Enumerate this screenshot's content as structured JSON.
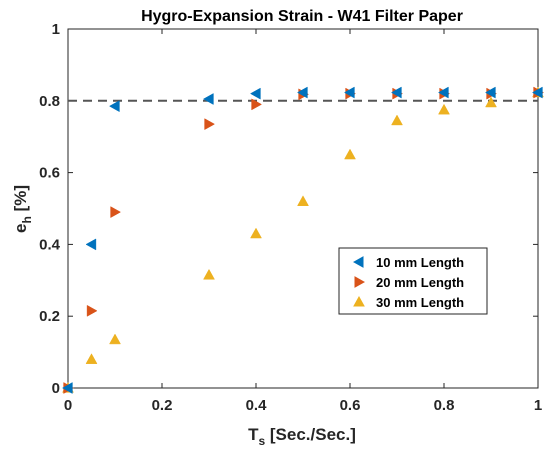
{
  "chart_data": {
    "type": "scatter",
    "title": "Hygro-Expansion Strain - W41 Filter Paper",
    "xlabel": {
      "main": "T",
      "sub": "s",
      "rest": " [Sec./Sec.]"
    },
    "ylabel": {
      "main": "e",
      "sub": "h",
      "rest": " [%]"
    },
    "xlim": [
      0,
      1
    ],
    "ylim": [
      0,
      1
    ],
    "xticks": [
      0,
      0.2,
      0.4,
      0.6,
      0.8,
      1
    ],
    "yticks": [
      0,
      0.2,
      0.4,
      0.6,
      0.8,
      1
    ],
    "xtick_labels": [
      "0",
      "0.2",
      "0.4",
      "0.6",
      "0.8",
      "1"
    ],
    "ytick_labels": [
      "0",
      "0.2",
      "0.4",
      "0.6",
      "0.8",
      "1"
    ],
    "grid": false,
    "reference_line": {
      "y": 0.8,
      "style": "dashed",
      "color": "#555555"
    },
    "legend_position": "center-right",
    "series": [
      {
        "name": "10 mm Length",
        "marker": "triangle-left",
        "color": "#0072BD",
        "x": [
          0,
          0.05,
          0.1,
          0.3,
          0.4,
          0.5,
          0.6,
          0.7,
          0.8,
          0.9,
          1.0
        ],
        "y": [
          0,
          0.4,
          0.785,
          0.805,
          0.82,
          0.823,
          0.823,
          0.823,
          0.823,
          0.823,
          0.823
        ]
      },
      {
        "name": "20 mm Length",
        "marker": "triangle-right",
        "color": "#D95319",
        "x": [
          0,
          0.05,
          0.1,
          0.3,
          0.4,
          0.5,
          0.6,
          0.7,
          0.8,
          0.9,
          1.0
        ],
        "y": [
          0,
          0.215,
          0.49,
          0.735,
          0.79,
          0.818,
          0.82,
          0.82,
          0.82,
          0.82,
          0.823
        ]
      },
      {
        "name": "30 mm Length",
        "marker": "triangle-up",
        "color": "#EDB120",
        "x": [
          0,
          0.05,
          0.1,
          0.3,
          0.4,
          0.5,
          0.6,
          0.7,
          0.8,
          0.9,
          1.0
        ],
        "y": [
          0,
          0.08,
          0.135,
          0.315,
          0.43,
          0.52,
          0.65,
          0.745,
          0.775,
          0.795,
          0.823
        ]
      }
    ]
  }
}
